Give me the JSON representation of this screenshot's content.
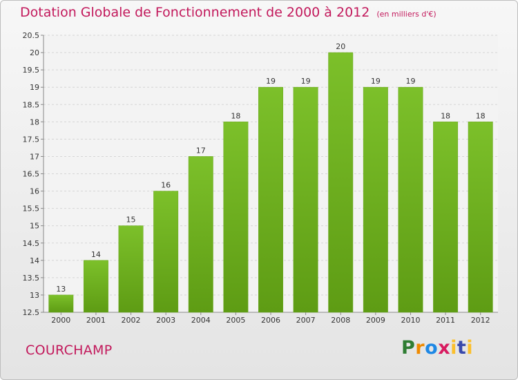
{
  "header": {
    "title": "Dotation Globale de Fonctionnement de 2000 à 2012",
    "subtitle": "(en milliers d'€)"
  },
  "footer": {
    "commune": "COURCHAMP",
    "brand": "Proxiti"
  },
  "colors": {
    "bar": "#7cc02a",
    "bar_dark": "#5e9c14",
    "text_accent": "#c2185b",
    "grid": "#d5d5d5",
    "axis_text": "#333333"
  },
  "chart_data": {
    "type": "bar",
    "title": "Dotation Globale de Fonctionnement de 2000 à 2012",
    "subtitle": "(en milliers d'€)",
    "categories": [
      "2000",
      "2001",
      "2002",
      "2003",
      "2004",
      "2005",
      "2006",
      "2007",
      "2008",
      "2009",
      "2010",
      "2011",
      "2012"
    ],
    "values": [
      13,
      14,
      15,
      16,
      17,
      18,
      19,
      19,
      20,
      19,
      19,
      18,
      18
    ],
    "data_labels": [
      "13",
      "14",
      "15",
      "16",
      "17",
      "18",
      "19",
      "19",
      "20",
      "19",
      "19",
      "18",
      "18"
    ],
    "ylim": [
      12.5,
      20.5
    ],
    "yticks": [
      "12.5",
      "13",
      "13.5",
      "14",
      "14.5",
      "15",
      "15.5",
      "16",
      "16.5",
      "17",
      "17.5",
      "18",
      "18.5",
      "19",
      "19.5",
      "20",
      "20.5"
    ],
    "grid": true,
    "xlabel": "",
    "ylabel": ""
  }
}
